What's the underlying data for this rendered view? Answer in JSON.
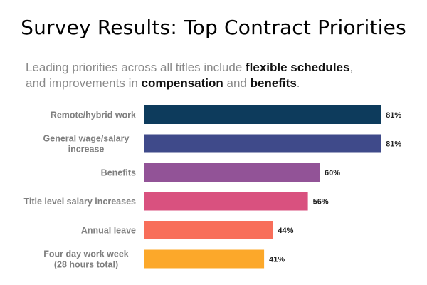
{
  "title": "Survey Results: Top Contract Priorities",
  "subtitle": {
    "line1_prefix": "Leading priorities across all titles include ",
    "line1_bold": "flexible schedules",
    "line1_suffix": ",",
    "line2_prefix": "and improvements in ",
    "line2_bold1": "compensation",
    "line2_mid": " and ",
    "line2_bold2": "benefits",
    "line2_suffix": "."
  },
  "chart_data": {
    "type": "bar",
    "orientation": "horizontal",
    "title": "Survey Results: Top Contract Priorities",
    "xlabel": "",
    "ylabel": "",
    "xlim": [
      0,
      100
    ],
    "grid": false,
    "legend": "none",
    "unit_suffix": "%",
    "categories": [
      [
        "Remote/hybrid work"
      ],
      [
        "General wage/salary",
        "increase"
      ],
      [
        "Benefits"
      ],
      [
        "Title level salary increases"
      ],
      [
        "Annual leave"
      ],
      [
        "Four day work week",
        "(28 hours total)"
      ]
    ],
    "values": [
      81,
      81,
      60,
      56,
      44,
      41
    ],
    "colors": [
      "#0d3b5c",
      "#3f4a8a",
      "#925397",
      "#d9517f",
      "#f86e5a",
      "#fca82a"
    ]
  }
}
